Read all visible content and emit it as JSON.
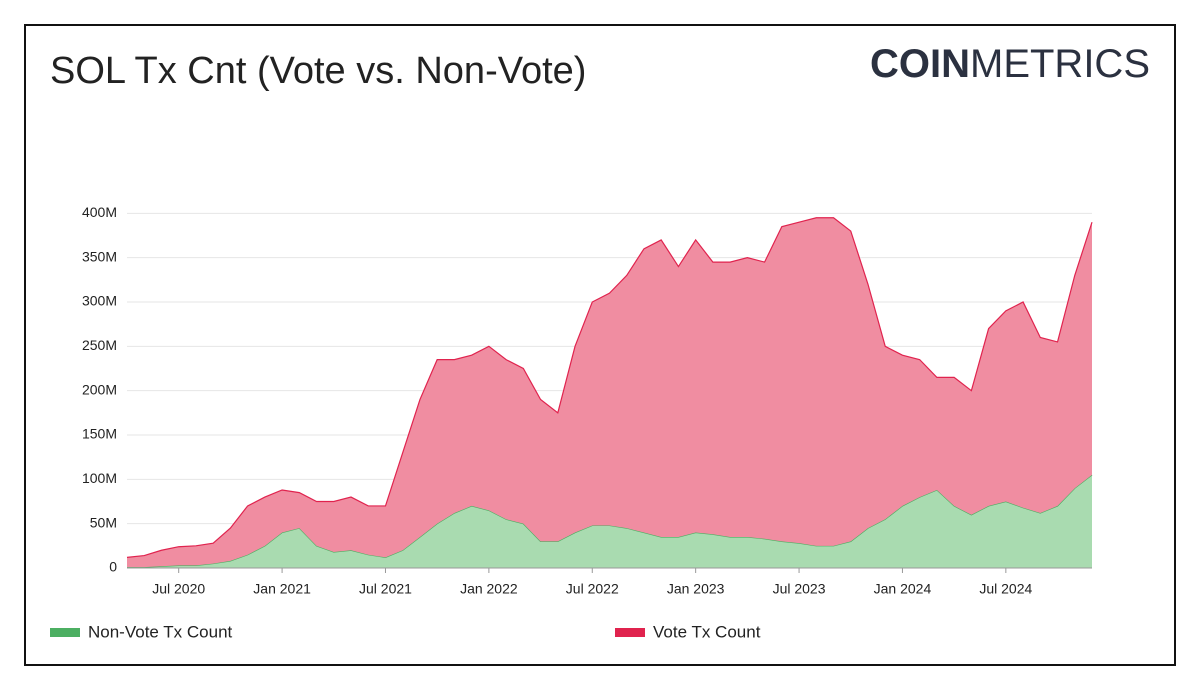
{
  "chart_data": {
    "type": "stacked_area",
    "title": "SOL Tx Cnt (Vote vs. Non-Vote)",
    "logo": {
      "bold": "COIN",
      "light": "METRICS"
    },
    "x": [
      "2020-04",
      "2020-05",
      "2020-06",
      "2020-07",
      "2020-08",
      "2020-09",
      "2020-10",
      "2020-11",
      "2020-12",
      "2021-01",
      "2021-02",
      "2021-03",
      "2021-04",
      "2021-05",
      "2021-06",
      "2021-07",
      "2021-08",
      "2021-09",
      "2021-10",
      "2021-11",
      "2021-12",
      "2022-01",
      "2022-02",
      "2022-03",
      "2022-04",
      "2022-05",
      "2022-06",
      "2022-07",
      "2022-08",
      "2022-09",
      "2022-10",
      "2022-11",
      "2022-12",
      "2023-01",
      "2023-02",
      "2023-03",
      "2023-04",
      "2023-05",
      "2023-06",
      "2023-07",
      "2023-08",
      "2023-09",
      "2023-10",
      "2023-11",
      "2023-12",
      "2024-01",
      "2024-02",
      "2024-03",
      "2024-04",
      "2024-05",
      "2024-06",
      "2024-07",
      "2024-08",
      "2024-09",
      "2024-10",
      "2024-11",
      "2024-12"
    ],
    "series": [
      {
        "name": "Non-Vote Tx Count",
        "color": "#4caf62",
        "fill": "#a9dbb0",
        "values": [
          1000000,
          1000000,
          2000000,
          3000000,
          3000000,
          5000000,
          8000000,
          15000000,
          25000000,
          40000000,
          45000000,
          25000000,
          18000000,
          20000000,
          15000000,
          12000000,
          20000000,
          35000000,
          50000000,
          62000000,
          70000000,
          65000000,
          55000000,
          50000000,
          30000000,
          30000000,
          40000000,
          48000000,
          48000000,
          45000000,
          40000000,
          35000000,
          35000000,
          40000000,
          38000000,
          35000000,
          35000000,
          33000000,
          30000000,
          28000000,
          25000000,
          25000000,
          30000000,
          45000000,
          55000000,
          70000000,
          80000000,
          88000000,
          70000000,
          60000000,
          70000000,
          75000000,
          68000000,
          62000000,
          70000000,
          90000000,
          105000000
        ]
      },
      {
        "name": "Vote Tx Count",
        "color": "#e0234e",
        "fill": "#f08da1",
        "values": [
          11000000,
          13000000,
          18000000,
          21000000,
          22000000,
          23000000,
          37000000,
          55000000,
          55000000,
          48000000,
          40000000,
          50000000,
          57000000,
          60000000,
          55000000,
          58000000,
          110000000,
          155000000,
          185000000,
          173000000,
          170000000,
          185000000,
          180000000,
          175000000,
          160000000,
          145000000,
          210000000,
          252000000,
          262000000,
          285000000,
          320000000,
          335000000,
          305000000,
          330000000,
          307000000,
          310000000,
          315000000,
          312000000,
          355000000,
          362000000,
          370000000,
          370000000,
          350000000,
          275000000,
          195000000,
          170000000,
          155000000,
          127000000,
          145000000,
          140000000,
          200000000,
          215000000,
          232000000,
          198000000,
          185000000,
          240000000,
          285000000
        ]
      }
    ],
    "xlim": [
      "2020-04",
      "2024-12"
    ],
    "xticks": [
      {
        "value": "2020-07",
        "label": "Jul 2020"
      },
      {
        "value": "2021-01",
        "label": "Jan 2021"
      },
      {
        "value": "2021-07",
        "label": "Jul 2021"
      },
      {
        "value": "2022-01",
        "label": "Jan 2022"
      },
      {
        "value": "2022-07",
        "label": "Jul 2022"
      },
      {
        "value": "2023-01",
        "label": "Jan 2023"
      },
      {
        "value": "2023-07",
        "label": "Jul 2023"
      },
      {
        "value": "2024-01",
        "label": "Jan 2024"
      },
      {
        "value": "2024-07",
        "label": "Jul 2024"
      }
    ],
    "ylim": [
      0,
      450000000
    ],
    "yticks": [
      0,
      {
        "value": 50000000,
        "label": "50M"
      },
      {
        "value": 100000000,
        "label": "100M"
      },
      {
        "value": 150000000,
        "label": "150M"
      },
      {
        "value": 200000000,
        "label": "200M"
      },
      {
        "value": 250000000,
        "label": "250M"
      },
      {
        "value": 300000000,
        "label": "300M"
      },
      {
        "value": 350000000,
        "label": "350M"
      },
      {
        "value": 400000000,
        "label": "400M"
      }
    ],
    "grid": true,
    "legend": "bottom"
  }
}
